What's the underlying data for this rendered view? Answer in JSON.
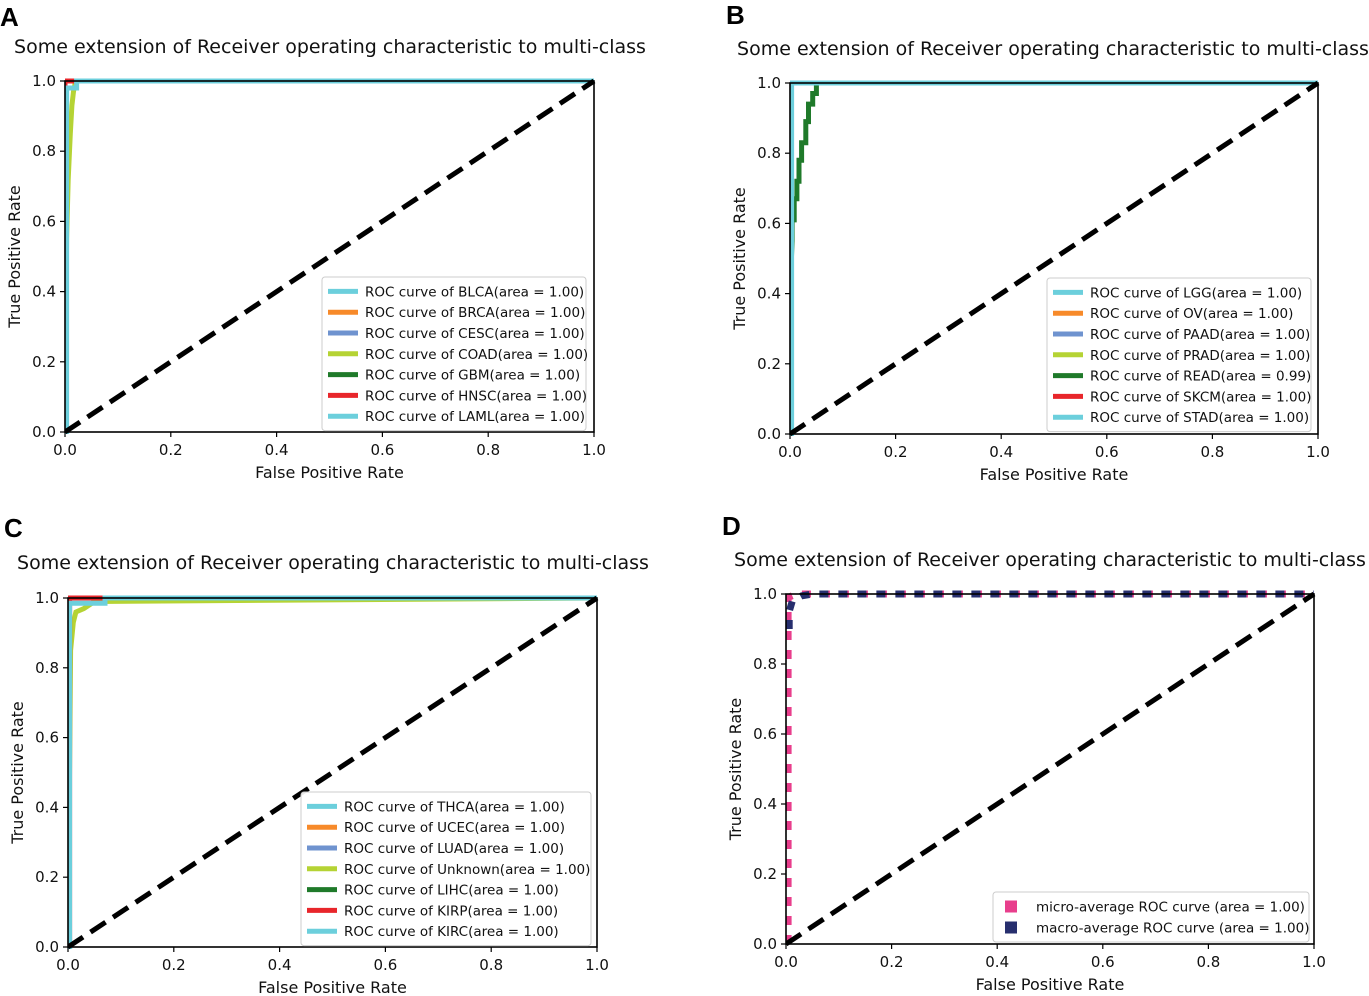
{
  "chart_data": [
    {
      "panel": "A",
      "type": "line",
      "title": "Some extension of Receiver operating characteristic to multi-class",
      "xlabel": "False Positive Rate",
      "ylabel": "True Positive Rate",
      "xlim": [
        0,
        1
      ],
      "ylim": [
        0,
        1
      ],
      "xticks": [
        "0.0",
        "0.2",
        "0.4",
        "0.6",
        "0.8",
        "1.0"
      ],
      "yticks": [
        "0.0",
        "0.2",
        "0.4",
        "0.6",
        "0.8",
        "1.0"
      ],
      "legend_position": "lower-right",
      "series": [
        {
          "name": "ROC curve of BLCA(area = 1.00)",
          "color": "#6ccfdc",
          "x": [
            0,
            0,
            1
          ],
          "y": [
            0,
            1,
            1
          ]
        },
        {
          "name": "ROC curve of BRCA(area = 1.00)",
          "color": "#f78a2a",
          "x": [
            0,
            0,
            1
          ],
          "y": [
            0,
            1,
            1
          ]
        },
        {
          "name": "ROC curve of CESC(area = 1.00)",
          "color": "#6f93cf",
          "x": [
            0,
            0,
            1
          ],
          "y": [
            0,
            1,
            1
          ]
        },
        {
          "name": "ROC curve of COAD(area = 1.00)",
          "color": "#b5d334",
          "x": [
            0,
            0.003,
            0.006,
            0.01,
            0.013,
            0.016,
            0.02,
            1
          ],
          "y": [
            0,
            0.55,
            0.72,
            0.85,
            0.93,
            0.97,
            1,
            1
          ]
        },
        {
          "name": "ROC curve of GBM(area = 1.00)",
          "color": "#1f7a2a",
          "x": [
            0,
            0,
            1
          ],
          "y": [
            0,
            1,
            1
          ]
        },
        {
          "name": "ROC curve of HNSC(area = 1.00)",
          "color": "#e8262b",
          "x": [
            0,
            0,
            1
          ],
          "y": [
            0,
            1,
            1
          ]
        },
        {
          "name": "ROC curve of LAML(area = 1.00)",
          "color": "#6ccfdc",
          "x": [
            0,
            0.003,
            0.003,
            0.022,
            0.022,
            1
          ],
          "y": [
            0,
            0,
            0.98,
            0.98,
            1,
            1
          ]
        }
      ],
      "reference_line": {
        "x": [
          0,
          1
        ],
        "y": [
          0,
          1
        ],
        "style": "dashed",
        "color": "#000000"
      }
    },
    {
      "panel": "B",
      "type": "line",
      "title": "Some extension of Receiver operating characteristic to multi-class",
      "xlabel": "False Positive Rate",
      "ylabel": "True Positive Rate",
      "xlim": [
        0,
        1
      ],
      "ylim": [
        0,
        1
      ],
      "xticks": [
        "0.0",
        "0.2",
        "0.4",
        "0.6",
        "0.8",
        "1.0"
      ],
      "yticks": [
        "0.0",
        "0.2",
        "0.4",
        "0.6",
        "0.8",
        "1.0"
      ],
      "legend_position": "lower-right",
      "series": [
        {
          "name": "ROC curve of LGG(area = 1.00)",
          "color": "#6ccfdc",
          "x": [
            0,
            0,
            1
          ],
          "y": [
            0,
            1,
            1
          ]
        },
        {
          "name": "ROC curve of OV(area = 1.00)",
          "color": "#f78a2a",
          "x": [
            0,
            0,
            1
          ],
          "y": [
            0,
            1,
            1
          ]
        },
        {
          "name": "ROC curve of PAAD(area = 1.00)",
          "color": "#6f93cf",
          "x": [
            0,
            0,
            1
          ],
          "y": [
            0,
            1,
            1
          ]
        },
        {
          "name": "ROC curve of PRAD(area = 1.00)",
          "color": "#b5d334",
          "x": [
            0,
            0,
            1
          ],
          "y": [
            0,
            1,
            1
          ]
        },
        {
          "name": "ROC curve of READ(area = 0.99)",
          "color": "#1f7a2a",
          "x": [
            0,
            0.004,
            0.004,
            0.008,
            0.008,
            0.013,
            0.013,
            0.017,
            0.017,
            0.022,
            0.022,
            0.03,
            0.03,
            0.035,
            0.035,
            0.043,
            0.043,
            0.05,
            0.05,
            1
          ],
          "y": [
            0.4,
            0.55,
            0.61,
            0.61,
            0.67,
            0.67,
            0.72,
            0.72,
            0.78,
            0.78,
            0.83,
            0.83,
            0.89,
            0.89,
            0.94,
            0.94,
            0.97,
            0.97,
            1,
            1
          ]
        },
        {
          "name": "ROC curve of SKCM(area = 1.00)",
          "color": "#e8262b",
          "x": [
            0,
            0,
            1
          ],
          "y": [
            0,
            1,
            1
          ]
        },
        {
          "name": "ROC curve of STAD(area = 1.00)",
          "color": "#6ccfdc",
          "x": [
            0,
            0.003,
            0.003,
            1
          ],
          "y": [
            0,
            0,
            1,
            1
          ]
        }
      ],
      "reference_line": {
        "x": [
          0,
          1
        ],
        "y": [
          0,
          1
        ],
        "style": "dashed",
        "color": "#000000"
      }
    },
    {
      "panel": "C",
      "type": "line",
      "title": "Some extension of Receiver operating characteristic to multi-class",
      "xlabel": "False Positive Rate",
      "ylabel": "True Positive Rate",
      "xlim": [
        0,
        1
      ],
      "ylim": [
        0,
        1
      ],
      "xticks": [
        "0.0",
        "0.2",
        "0.4",
        "0.6",
        "0.8",
        "1.0"
      ],
      "yticks": [
        "0.0",
        "0.2",
        "0.4",
        "0.6",
        "0.8",
        "1.0"
      ],
      "legend_position": "lower-right",
      "series": [
        {
          "name": "ROC curve of THCA(area = 1.00)",
          "color": "#6ccfdc",
          "x": [
            0,
            0,
            1
          ],
          "y": [
            0,
            1,
            1
          ]
        },
        {
          "name": "ROC curve of UCEC(area = 1.00)",
          "color": "#f78a2a",
          "x": [
            0,
            0,
            1
          ],
          "y": [
            0,
            1,
            1
          ]
        },
        {
          "name": "ROC curve of LUAD(area = 1.00)",
          "color": "#6f93cf",
          "x": [
            0,
            0,
            1
          ],
          "y": [
            0,
            1,
            1
          ]
        },
        {
          "name": "ROC curve of Unknown(area = 1.00)",
          "color": "#b5d334",
          "x": [
            0,
            0.005,
            0.01,
            0.015,
            0.03,
            0.05,
            1
          ],
          "y": [
            0,
            0.85,
            0.93,
            0.96,
            0.97,
            0.99,
            1
          ]
        },
        {
          "name": "ROC curve of LIHC(area = 1.00)",
          "color": "#1f7a2a",
          "x": [
            0,
            0,
            1
          ],
          "y": [
            0,
            1,
            1
          ]
        },
        {
          "name": "ROC curve of KIRP(area = 1.00)",
          "color": "#e8262b",
          "x": [
            0,
            0.003,
            0.003,
            0.065,
            0.065,
            1
          ],
          "y": [
            0,
            0,
            1,
            1,
            1,
            1
          ]
        },
        {
          "name": "ROC curve of KIRC(area = 1.00)",
          "color": "#6ccfdc",
          "x": [
            0,
            0.003,
            0.003,
            0.07,
            0.07,
            1
          ],
          "y": [
            0,
            0,
            0.985,
            0.985,
            1,
            1
          ]
        }
      ],
      "reference_line": {
        "x": [
          0,
          1
        ],
        "y": [
          0,
          1
        ],
        "style": "dashed",
        "color": "#000000"
      }
    },
    {
      "panel": "D",
      "type": "line",
      "title": "Some extension of Receiver operating characteristic to multi-class",
      "xlabel": "False Positive Rate",
      "ylabel": "True Positive Rate",
      "xlim": [
        0,
        1
      ],
      "ylim": [
        0,
        1
      ],
      "xticks": [
        "0.0",
        "0.2",
        "0.4",
        "0.6",
        "0.8",
        "1.0"
      ],
      "yticks": [
        "0.0",
        "0.2",
        "0.4",
        "0.6",
        "0.8",
        "1.0"
      ],
      "legend_position": "lower-right",
      "series": [
        {
          "name": "micro-average ROC curve (area = 1.00)",
          "color": "#e83e8c",
          "style": "dotted",
          "x": [
            0.004,
            0.004,
            0.02,
            1
          ],
          "y": [
            0,
            0.99,
            1,
            1
          ]
        },
        {
          "name": "macro-average ROC curve (area = 1.00)",
          "color": "#272f6e",
          "style": "dotted",
          "x": [
            0.006,
            0.006,
            0.012,
            0.03,
            0.05,
            1
          ],
          "y": [
            0.9,
            0.95,
            0.98,
            0.995,
            1,
            1
          ]
        }
      ],
      "reference_line": {
        "x": [
          0,
          1
        ],
        "y": [
          0,
          1
        ],
        "style": "dashed",
        "color": "#000000"
      }
    }
  ]
}
